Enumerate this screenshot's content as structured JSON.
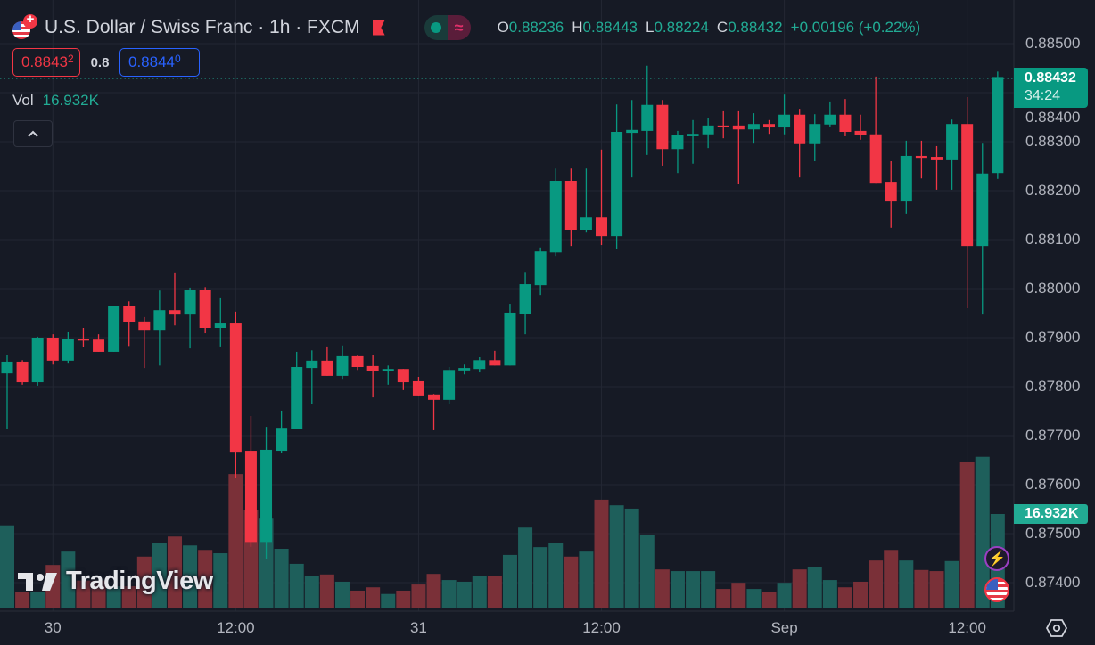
{
  "header": {
    "title": "U.S. Dollar / Swiss Franc · 1h · FXCM",
    "ohlc": {
      "o_label": "O",
      "o": "0.88236",
      "h_label": "H",
      "h": "0.88443",
      "l_label": "L",
      "l": "0.88224",
      "c_label": "C",
      "c": "0.88432",
      "change": "+0.00196 (+0.22%)"
    },
    "sell_price": "0.8843",
    "sell_pip": "2",
    "spread": "0.8",
    "buy_price": "0.8844",
    "buy_pip": "0",
    "volume_label": "Vol",
    "volume_value": "16.932K",
    "collapse_icon": "chevron-up-icon"
  },
  "last_price": {
    "price": "0.88432",
    "countdown": "34:24",
    "volume": "16.932K"
  },
  "price_axis": [
    "0.88500",
    "0.88400",
    "0.88300",
    "0.88200",
    "0.88100",
    "0.88000",
    "0.87900",
    "0.87800",
    "0.87700",
    "0.87600",
    "0.87500",
    "0.87400"
  ],
  "time_axis": [
    "30",
    "12:00",
    "31",
    "12:00",
    "Sep",
    "12:00"
  ],
  "brand": "TradingView",
  "colors": {
    "up": "#089981",
    "down": "#f23645",
    "background": "#161a25"
  },
  "chart_data": {
    "type": "candlestick",
    "title": "U.S. Dollar / Swiss Franc · 1h · FXCM",
    "ylim": [
      0.8738,
      0.8851
    ],
    "interval": "1h",
    "candles_ohlc": [
      [
        0.87827,
        0.87864,
        0.87713,
        0.87851
      ],
      [
        0.87851,
        0.87854,
        0.87804,
        0.87809
      ],
      [
        0.87809,
        0.87902,
        0.87802,
        0.879
      ],
      [
        0.879,
        0.87907,
        0.87845,
        0.87853
      ],
      [
        0.87853,
        0.87911,
        0.87847,
        0.87898
      ],
      [
        0.87898,
        0.8792,
        0.8788,
        0.87894
      ],
      [
        0.87896,
        0.87907,
        0.87871,
        0.87871
      ],
      [
        0.87871,
        0.87965,
        0.87871,
        0.87965
      ],
      [
        0.87965,
        0.87974,
        0.87883,
        0.87931
      ],
      [
        0.87933,
        0.87942,
        0.87838,
        0.87916
      ],
      [
        0.87916,
        0.87996,
        0.87843,
        0.87956
      ],
      [
        0.87956,
        0.88033,
        0.87925,
        0.87947
      ],
      [
        0.87947,
        0.88002,
        0.87878,
        0.87998
      ],
      [
        0.87998,
        0.88003,
        0.87909,
        0.8792
      ],
      [
        0.8792,
        0.87982,
        0.87882,
        0.87929
      ],
      [
        0.87929,
        0.87953,
        0.87614,
        0.87667
      ],
      [
        0.87669,
        0.8774,
        0.87473,
        0.87483
      ],
      [
        0.87483,
        0.87718,
        0.87449,
        0.87671
      ],
      [
        0.87669,
        0.87751,
        0.87665,
        0.87716
      ],
      [
        0.87714,
        0.87871,
        0.87714,
        0.8784
      ],
      [
        0.87838,
        0.87874,
        0.87765,
        0.87853
      ],
      [
        0.87853,
        0.87882,
        0.87822,
        0.87822
      ],
      [
        0.87822,
        0.87884,
        0.87816,
        0.87862
      ],
      [
        0.87862,
        0.87865,
        0.87834,
        0.8784
      ],
      [
        0.87842,
        0.87864,
        0.87778,
        0.87831
      ],
      [
        0.87831,
        0.87843,
        0.87804,
        0.87836
      ],
      [
        0.87836,
        0.87836,
        0.87793,
        0.87809
      ],
      [
        0.87811,
        0.8782,
        0.8778,
        0.87782
      ],
      [
        0.87784,
        0.87785,
        0.87711,
        0.87773
      ],
      [
        0.87773,
        0.8784,
        0.87765,
        0.87834
      ],
      [
        0.87833,
        0.87845,
        0.87825,
        0.87838
      ],
      [
        0.87836,
        0.8786,
        0.87829,
        0.87854
      ],
      [
        0.87854,
        0.87873,
        0.87843,
        0.87843
      ],
      [
        0.87843,
        0.87969,
        0.87843,
        0.87951
      ],
      [
        0.87949,
        0.88034,
        0.87907,
        0.88009
      ],
      [
        0.88007,
        0.88084,
        0.87987,
        0.88076
      ],
      [
        0.88074,
        0.88245,
        0.88067,
        0.8822
      ],
      [
        0.8822,
        0.88245,
        0.88087,
        0.8812
      ],
      [
        0.8812,
        0.88245,
        0.88116,
        0.88145
      ],
      [
        0.88145,
        0.88284,
        0.88089,
        0.88107
      ],
      [
        0.88107,
        0.88376,
        0.8808,
        0.8832
      ],
      [
        0.88318,
        0.88385,
        0.88227,
        0.88324
      ],
      [
        0.88322,
        0.88455,
        0.88273,
        0.88375
      ],
      [
        0.88375,
        0.88385,
        0.88251,
        0.88285
      ],
      [
        0.88285,
        0.88322,
        0.88236,
        0.88313
      ],
      [
        0.88311,
        0.88344,
        0.88255,
        0.88316
      ],
      [
        0.88315,
        0.88349,
        0.88287,
        0.88333
      ],
      [
        0.88333,
        0.88362,
        0.88307,
        0.88331
      ],
      [
        0.88333,
        0.88362,
        0.88213,
        0.88325
      ],
      [
        0.88325,
        0.88358,
        0.88296,
        0.88336
      ],
      [
        0.88336,
        0.88344,
        0.88316,
        0.88329
      ],
      [
        0.88329,
        0.88396,
        0.88315,
        0.88355
      ],
      [
        0.88355,
        0.88367,
        0.88227,
        0.88295
      ],
      [
        0.88295,
        0.88356,
        0.8826,
        0.88336
      ],
      [
        0.88335,
        0.88382,
        0.88331,
        0.88355
      ],
      [
        0.88355,
        0.88387,
        0.88311,
        0.8832
      ],
      [
        0.88322,
        0.88355,
        0.88304,
        0.88313
      ],
      [
        0.88315,
        0.88433,
        0.88216,
        0.88216
      ],
      [
        0.88218,
        0.8826,
        0.88124,
        0.88178
      ],
      [
        0.88178,
        0.88302,
        0.88153,
        0.88271
      ],
      [
        0.88271,
        0.88302,
        0.88225,
        0.88267
      ],
      [
        0.88269,
        0.88291,
        0.88202,
        0.88262
      ],
      [
        0.88262,
        0.88345,
        0.88202,
        0.88336
      ],
      [
        0.88336,
        0.88391,
        0.8796,
        0.88087
      ],
      [
        0.88087,
        0.88296,
        0.87947,
        0.88235
      ],
      [
        0.88236,
        0.88443,
        0.88224,
        0.88432
      ]
    ],
    "volume_k": [
      14.9,
      3.0,
      3.0,
      7.8,
      10.2,
      5.0,
      5.0,
      4.0,
      4.0,
      9.3,
      11.8,
      12.9,
      11.3,
      10.5,
      9.9,
      24.1,
      17.7,
      16.1,
      10.7,
      8.0,
      5.8,
      6.1,
      4.8,
      3.2,
      3.8,
      2.6,
      3.2,
      4.3,
      6.2,
      5.1,
      4.8,
      5.8,
      5.8,
      9.6,
      14.5,
      11.0,
      11.8,
      9.3,
      10.2,
      19.5,
      18.5,
      17.9,
      13.1,
      7.0,
      6.7,
      6.7,
      6.7,
      3.5,
      4.6,
      3.5,
      2.9,
      4.6,
      7.0,
      7.5,
      5.1,
      3.8,
      4.8,
      8.6,
      10.5,
      8.6,
      6.9,
      6.7,
      8.5,
      26.2,
      27.2,
      16.932
    ]
  }
}
